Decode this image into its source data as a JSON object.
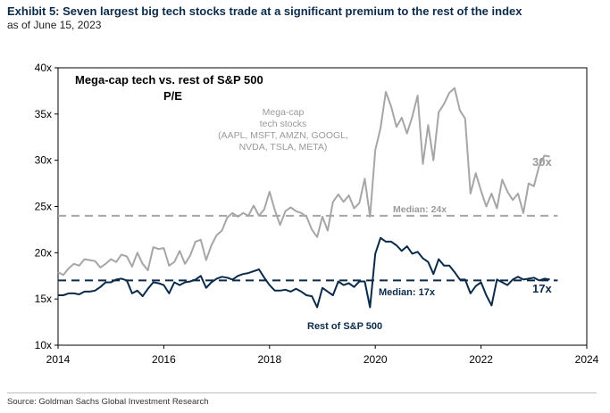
{
  "header": {
    "title": "Exhibit 5: Seven largest big tech stocks trade at a significant premium to the rest of the index",
    "subtitle": "as of June 15, 2023"
  },
  "source": "Source: Goldman Sachs Global Investment Research",
  "chart_data": {
    "type": "line",
    "title": "Mega-cap tech vs. rest of S&P 500",
    "subtitle": "P/E",
    "xlabel": "",
    "ylabel": "",
    "xlim": [
      2014,
      2024
    ],
    "ylim": [
      10,
      40
    ],
    "x_ticks": [
      "2014",
      "2016",
      "2018",
      "2020",
      "2022",
      "2024"
    ],
    "y_ticks": [
      "10x",
      "15x",
      "20x",
      "25x",
      "30x",
      "35x",
      "40x"
    ],
    "colors": {
      "megacap": "#a6a6a6",
      "rest": "#0b2a4a"
    },
    "series": [
      {
        "name": "Mega-cap tech stocks",
        "label_lines": [
          "Mega-cap",
          "tech stocks",
          "(AAPL, MSFT, AMZN, GOOGL,",
          "NVDA, TSLA, META)"
        ],
        "end_label": "30x",
        "median": 24,
        "median_label": "Median: 24x",
        "x": [
          2014.0,
          2014.1,
          2014.2,
          2014.3,
          2014.4,
          2014.5,
          2014.6,
          2014.7,
          2014.8,
          2014.9,
          2015.0,
          2015.1,
          2015.2,
          2015.3,
          2015.4,
          2015.5,
          2015.6,
          2015.7,
          2015.8,
          2015.9,
          2016.0,
          2016.1,
          2016.2,
          2016.3,
          2016.4,
          2016.5,
          2016.6,
          2016.7,
          2016.8,
          2016.9,
          2017.0,
          2017.1,
          2017.2,
          2017.3,
          2017.4,
          2017.5,
          2017.6,
          2017.7,
          2017.8,
          2017.9,
          2018.0,
          2018.1,
          2018.2,
          2018.3,
          2018.4,
          2018.5,
          2018.6,
          2018.7,
          2018.8,
          2018.9,
          2019.0,
          2019.1,
          2019.2,
          2019.3,
          2019.4,
          2019.5,
          2019.6,
          2019.7,
          2019.8,
          2019.9,
          2020.0,
          2020.1,
          2020.2,
          2020.3,
          2020.4,
          2020.5,
          2020.6,
          2020.7,
          2020.8,
          2020.9,
          2021.0,
          2021.1,
          2021.2,
          2021.3,
          2021.4,
          2021.5,
          2021.6,
          2021.7,
          2021.8,
          2021.9,
          2022.0,
          2022.1,
          2022.2,
          2022.3,
          2022.4,
          2022.5,
          2022.6,
          2022.7,
          2022.8,
          2022.9,
          2023.0,
          2023.1,
          2023.2,
          2023.3
        ],
        "values": [
          17.9,
          17.6,
          18.3,
          18.8,
          18.6,
          19.3,
          19.2,
          19.1,
          18.4,
          18.8,
          19.3,
          19.0,
          19.8,
          19.6,
          18.5,
          20.0,
          18.8,
          18.1,
          20.6,
          20.4,
          20.5,
          18.6,
          19.0,
          20.2,
          18.8,
          19.7,
          21.2,
          21.4,
          19.2,
          20.8,
          21.9,
          22.4,
          23.8,
          24.3,
          23.9,
          24.3,
          24.0,
          25.1,
          24.0,
          24.7,
          26.6,
          24.6,
          23.0,
          24.5,
          24.9,
          24.5,
          24.3,
          23.9,
          22.5,
          21.7,
          23.9,
          22.4,
          25.5,
          26.3,
          25.5,
          26.2,
          24.8,
          25.4,
          28.0,
          23.9,
          31.1,
          33.5,
          37.4,
          35.8,
          33.6,
          34.6,
          32.9,
          34.7,
          37.0,
          29.6,
          33.8,
          30.0,
          35.2,
          36.1,
          37.3,
          37.8,
          35.4,
          34.5,
          26.4,
          28.6,
          26.7,
          25.0,
          26.4,
          24.8,
          27.9,
          26.6,
          25.7,
          26.4,
          24.3,
          27.5,
          27.2,
          29.4,
          30.5,
          30.4
        ]
      },
      {
        "name": "Rest of S&P 500",
        "label_lines": [
          "Rest of S&P 500"
        ],
        "end_label": "17x",
        "median": 17,
        "median_label": "Median: 17x",
        "x": [
          2014.0,
          2014.1,
          2014.2,
          2014.3,
          2014.4,
          2014.5,
          2014.6,
          2014.7,
          2014.8,
          2014.9,
          2015.0,
          2015.1,
          2015.2,
          2015.3,
          2015.4,
          2015.5,
          2015.6,
          2015.7,
          2015.8,
          2015.9,
          2016.0,
          2016.1,
          2016.2,
          2016.3,
          2016.4,
          2016.5,
          2016.6,
          2016.7,
          2016.8,
          2016.9,
          2017.0,
          2017.1,
          2017.2,
          2017.3,
          2017.4,
          2017.5,
          2017.6,
          2017.7,
          2017.8,
          2017.9,
          2018.0,
          2018.1,
          2018.2,
          2018.3,
          2018.4,
          2018.5,
          2018.6,
          2018.7,
          2018.8,
          2018.9,
          2019.0,
          2019.1,
          2019.2,
          2019.3,
          2019.4,
          2019.5,
          2019.6,
          2019.7,
          2019.8,
          2019.9,
          2020.0,
          2020.1,
          2020.2,
          2020.3,
          2020.4,
          2020.5,
          2020.6,
          2020.7,
          2020.8,
          2020.9,
          2021.0,
          2021.1,
          2021.2,
          2021.3,
          2021.4,
          2021.5,
          2021.6,
          2021.7,
          2021.8,
          2021.9,
          2022.0,
          2022.1,
          2022.2,
          2022.3,
          2022.4,
          2022.5,
          2022.6,
          2022.7,
          2022.8,
          2022.9,
          2023.0,
          2023.1,
          2023.2,
          2023.3
        ],
        "values": [
          15.4,
          15.4,
          15.6,
          15.6,
          15.5,
          15.8,
          15.8,
          15.9,
          16.3,
          16.8,
          16.8,
          17.1,
          17.2,
          17.0,
          15.6,
          15.9,
          15.3,
          16.1,
          16.8,
          16.7,
          16.5,
          15.6,
          16.8,
          16.5,
          16.8,
          16.9,
          17.1,
          17.5,
          16.2,
          16.8,
          17.2,
          17.4,
          17.3,
          17.1,
          17.5,
          17.7,
          17.8,
          18.0,
          18.2,
          17.3,
          16.5,
          15.9,
          15.9,
          16.0,
          15.8,
          16.1,
          15.8,
          15.4,
          15.3,
          14.1,
          16.2,
          15.8,
          15.4,
          16.9,
          16.5,
          16.7,
          16.3,
          16.9,
          16.9,
          14.1,
          19.9,
          21.6,
          21.2,
          21.2,
          20.8,
          20.2,
          20.7,
          19.9,
          20.1,
          19.4,
          19.0,
          17.7,
          19.3,
          18.6,
          18.6,
          17.9,
          17.1,
          17.1,
          15.6,
          16.4,
          16.8,
          15.4,
          14.3,
          17.1,
          16.8,
          16.5,
          17.1,
          17.4,
          17.1,
          17.2,
          17.3,
          17.0,
          17.2,
          17.1
        ]
      }
    ]
  }
}
